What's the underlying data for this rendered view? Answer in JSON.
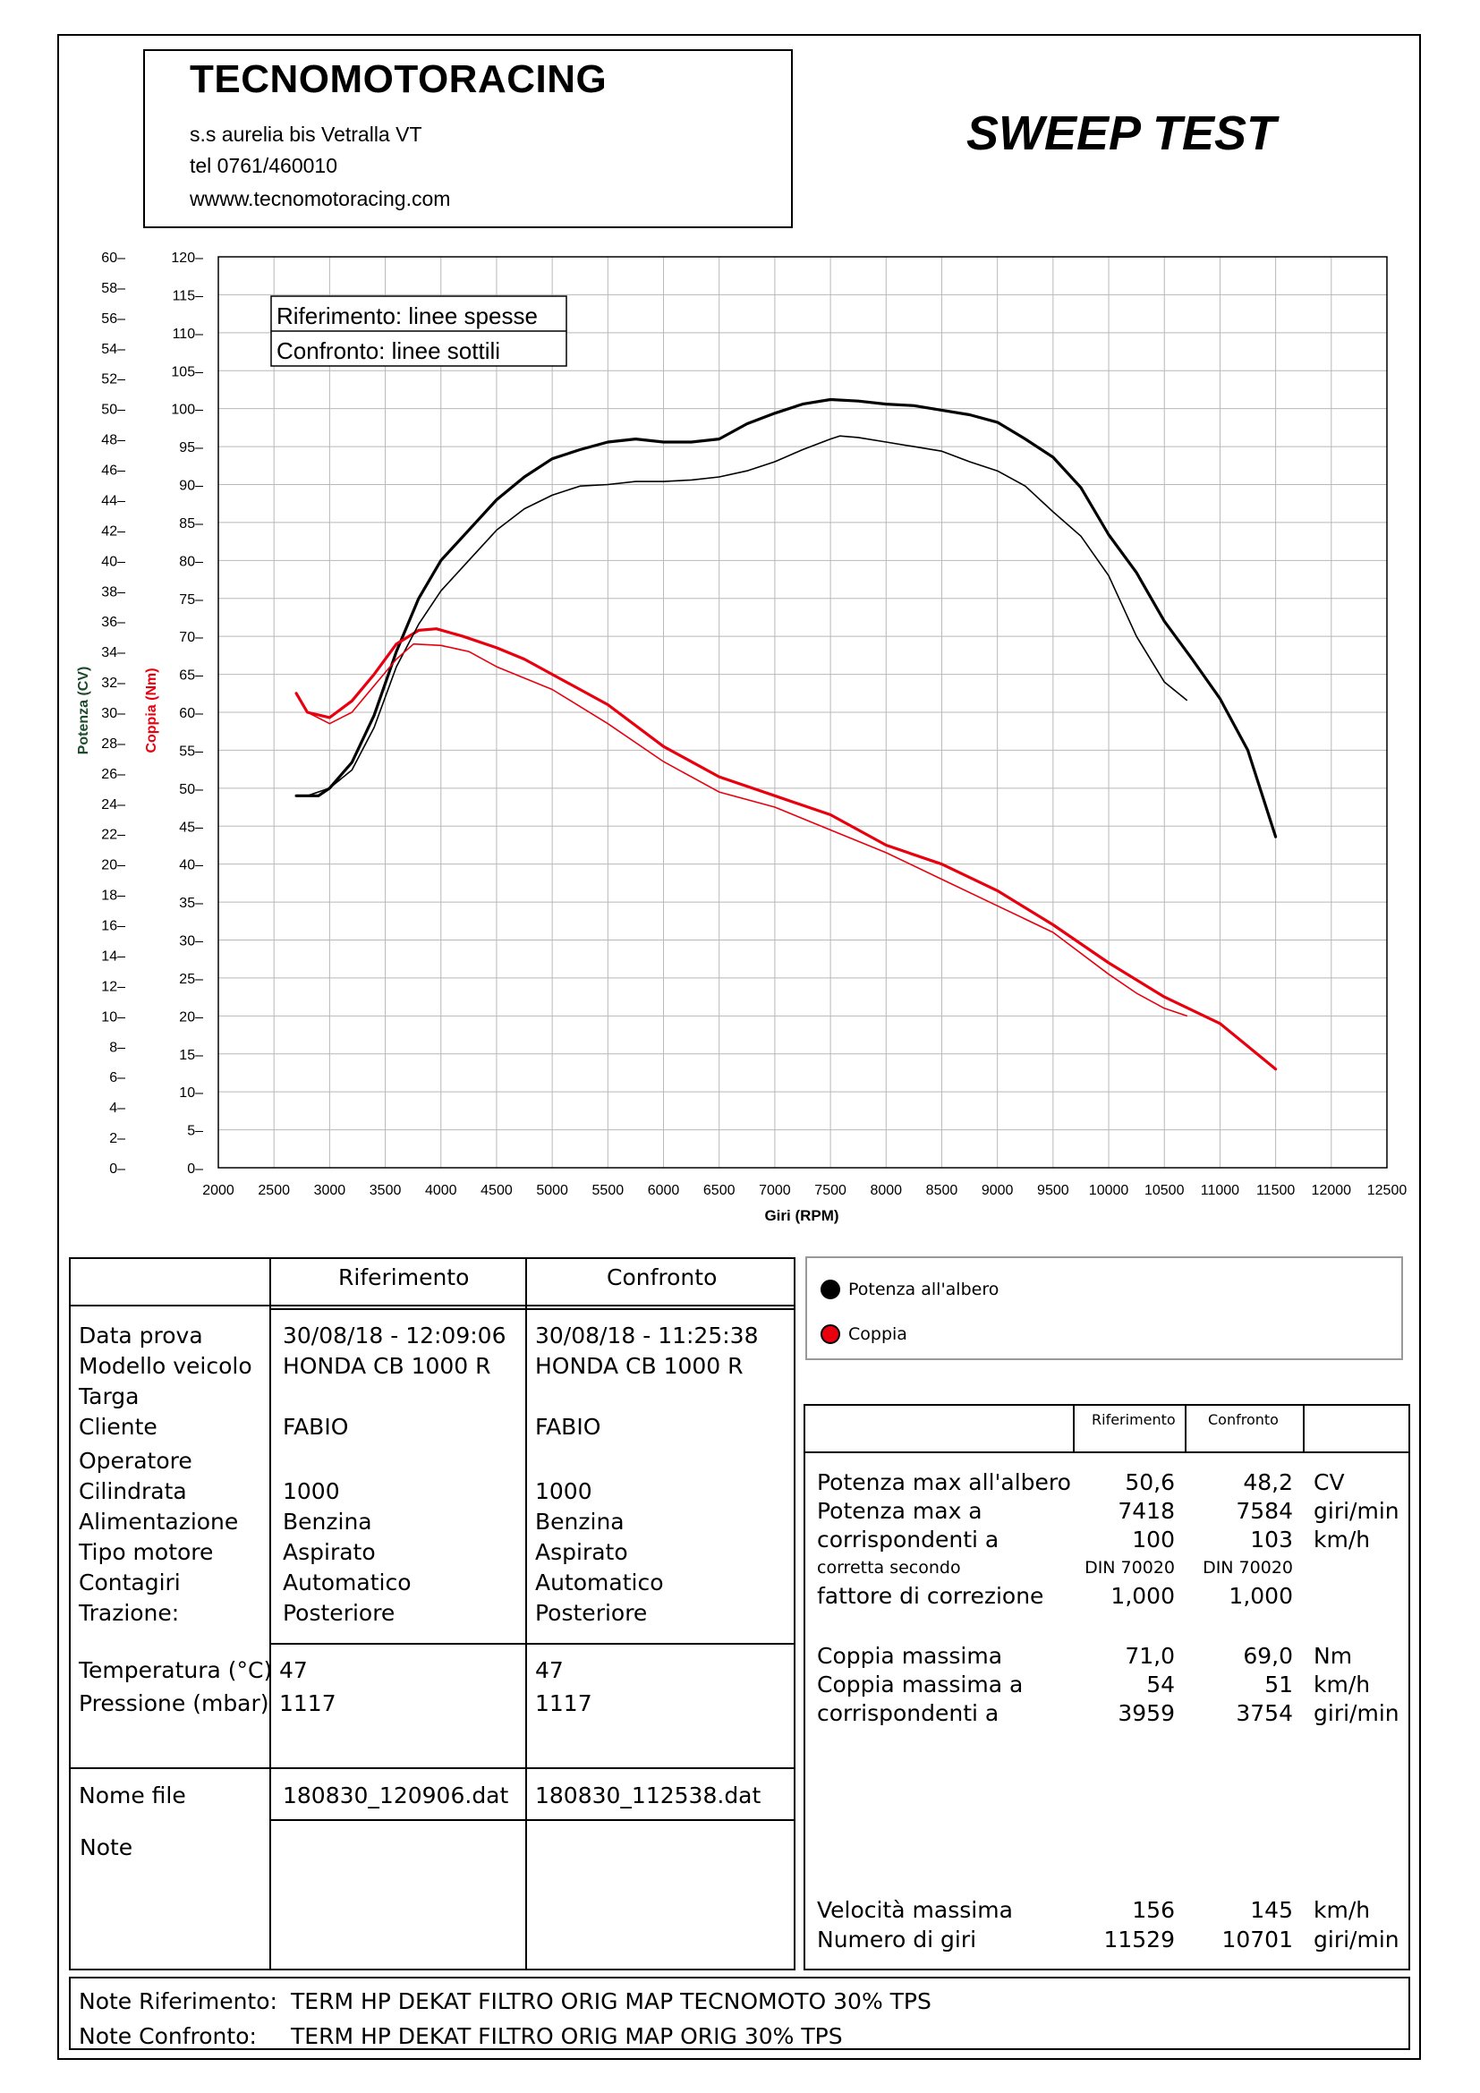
{
  "header": {
    "company": "TECNOMOTORACING",
    "address": "s.s aurelia bis  Vetralla  VT",
    "phone": "tel 0761/460010",
    "website": "wwww.tecnomotoracing.com",
    "test_title": "SWEEP TEST"
  },
  "chart_note": {
    "reference": "Riferimento: linee spesse",
    "comparison": "Confronto: linee sottili"
  },
  "chart_data": {
    "type": "line",
    "xlabel": "Giri (RPM)",
    "ylabel_left_outer": "Potenza (CV)",
    "ylabel_left_inner": "Coppia (Nm)",
    "xlim": [
      2000,
      12500
    ],
    "x_ticks": [
      "2000",
      "2500",
      "3000",
      "3500",
      "4000",
      "4500",
      "5000",
      "5500",
      "6000",
      "6500",
      "7000",
      "7500",
      "8000",
      "8500",
      "9000",
      "9500",
      "10000",
      "10500",
      "11000",
      "11500",
      "12000",
      "12500"
    ],
    "ylim_power": [
      0,
      60
    ],
    "power_ticks": [
      "0",
      "2",
      "4",
      "6",
      "8",
      "10",
      "12",
      "14",
      "16",
      "18",
      "20",
      "22",
      "24",
      "26",
      "28",
      "30",
      "32",
      "34",
      "36",
      "38",
      "40",
      "42",
      "44",
      "46",
      "48",
      "50",
      "52",
      "54",
      "56",
      "58",
      "60"
    ],
    "ylim_torque": [
      0,
      120
    ],
    "torque_ticks": [
      "0",
      "5",
      "10",
      "15",
      "20",
      "25",
      "30",
      "35",
      "40",
      "45",
      "50",
      "55",
      "60",
      "65",
      "70",
      "75",
      "80",
      "85",
      "90",
      "95",
      "100",
      "105",
      "110",
      "115",
      "120"
    ],
    "grid": true,
    "colors": {
      "power": "#000000",
      "torque": "#e8000f"
    },
    "series": [
      {
        "name": "Potenza all'albero",
        "role": "reference",
        "axis": "power",
        "color": "#000000",
        "x": [
          2700,
          2900,
          3000,
          3200,
          3400,
          3600,
          3800,
          4000,
          4250,
          4500,
          4750,
          5000,
          5250,
          5500,
          5750,
          6000,
          6250,
          6500,
          6750,
          7000,
          7250,
          7500,
          7750,
          8000,
          8250,
          8500,
          8750,
          9000,
          9250,
          9500,
          9750,
          10000,
          10250,
          10500,
          10750,
          11000,
          11250,
          11500
        ],
        "y": [
          24.5,
          24.5,
          25.0,
          26.7,
          29.8,
          34.0,
          37.5,
          40.0,
          42.0,
          44.0,
          45.5,
          46.7,
          47.3,
          47.8,
          48.0,
          47.8,
          47.8,
          48.0,
          49.0,
          49.7,
          50.3,
          50.6,
          50.5,
          50.3,
          50.2,
          49.9,
          49.6,
          49.1,
          48.0,
          46.8,
          44.8,
          41.7,
          39.2,
          36.0,
          33.5,
          30.9,
          27.5,
          21.8
        ]
      },
      {
        "name": "Coppia",
        "role": "reference",
        "axis": "torque",
        "color": "#e8000f",
        "x": [
          2700,
          2800,
          3000,
          3200,
          3400,
          3600,
          3800,
          3959,
          4200,
          4500,
          4750,
          5000,
          5500,
          6000,
          6500,
          7000,
          7500,
          8000,
          8500,
          9000,
          9500,
          10000,
          10500,
          11000,
          11500
        ],
        "y": [
          62.5,
          60.0,
          59.3,
          61.5,
          65.0,
          69.0,
          70.8,
          71.0,
          70.0,
          68.5,
          67.0,
          65.0,
          61.0,
          55.5,
          51.5,
          49.0,
          46.5,
          42.5,
          40.0,
          36.5,
          32.0,
          27.0,
          22.5,
          19.0,
          13.0
        ]
      },
      {
        "name": "Potenza all'albero",
        "role": "comparison",
        "axis": "power",
        "color": "#000000",
        "x": [
          2800,
          3000,
          3200,
          3400,
          3600,
          3800,
          4000,
          4250,
          4500,
          4750,
          5000,
          5250,
          5500,
          5750,
          6000,
          6250,
          6500,
          6750,
          7000,
          7250,
          7500,
          7584,
          7750,
          8000,
          8250,
          8500,
          8750,
          9000,
          9250,
          9500,
          9750,
          10000,
          10250,
          10500,
          10701
        ],
        "y": [
          24.5,
          25.0,
          26.2,
          29.0,
          33.0,
          35.8,
          38.0,
          40.0,
          42.0,
          43.4,
          44.3,
          44.9,
          45.0,
          45.2,
          45.2,
          45.3,
          45.5,
          45.9,
          46.5,
          47.3,
          48.0,
          48.2,
          48.1,
          47.8,
          47.5,
          47.2,
          46.5,
          45.9,
          44.9,
          43.2,
          41.6,
          39.0,
          35.0,
          32.0,
          30.8
        ]
      },
      {
        "name": "Coppia",
        "role": "comparison",
        "axis": "torque",
        "color": "#e8000f",
        "x": [
          2800,
          3000,
          3200,
          3400,
          3600,
          3754,
          4000,
          4250,
          4500,
          5000,
          5500,
          6000,
          6500,
          7000,
          7500,
          8000,
          8500,
          9000,
          9500,
          10000,
          10250,
          10500,
          10701
        ],
        "y": [
          60.0,
          58.5,
          60.0,
          63.5,
          67.0,
          69.0,
          68.8,
          68.0,
          66.0,
          63.0,
          58.5,
          53.5,
          49.5,
          47.5,
          44.5,
          41.5,
          38.0,
          34.5,
          31.0,
          25.5,
          23.0,
          21.0,
          20.0
        ]
      }
    ]
  },
  "legend": {
    "items": [
      {
        "label": "Potenza all'albero",
        "color": "#000000"
      },
      {
        "label": "Coppia",
        "color": "#e8000f"
      }
    ]
  },
  "info_table": {
    "col_ref": "Riferimento",
    "col_cmp": "Confronto",
    "labels": [
      "Data prova",
      "Modello veicolo",
      "Targa",
      "Cliente",
      "Operatore",
      "Cilindrata",
      "Alimentazione",
      "Tipo motore",
      "Contagiri",
      "Trazione:"
    ],
    "ref": [
      "30/08/18 - 12:09:06",
      "HONDA CB 1000 R",
      "",
      "FABIO",
      "",
      "1000",
      "Benzina",
      "Aspirato",
      "Automatico",
      "Posteriore"
    ],
    "cmp": [
      "30/08/18 - 11:25:38",
      "HONDA CB 1000 R",
      "",
      "FABIO",
      "",
      "1000",
      "Benzina",
      "Aspirato",
      "Automatico",
      "Posteriore"
    ],
    "env_labels": [
      "Temperatura (°C)",
      "Pressione (mbar)"
    ],
    "env_ref": [
      "47",
      "1117"
    ],
    "env_cmp": [
      "47",
      "1117"
    ],
    "file_label": "Nome file",
    "file_ref": "180830_120906.dat",
    "file_cmp": "180830_112538.dat",
    "note_label": "Note"
  },
  "results_table": {
    "col_ref": "Riferimento",
    "col_cmp": "Confronto",
    "rows": [
      {
        "label": "Potenza max all'albero",
        "ref": "50,6",
        "cmp": "48,2",
        "unit": "CV"
      },
      {
        "label": "Potenza max a",
        "ref": "7418",
        "cmp": "7584",
        "unit": "giri/min"
      },
      {
        "label": "corrispondenti a",
        "ref": "100",
        "cmp": "103",
        "unit": "km/h"
      },
      {
        "label": "corretta secondo",
        "ref": "DIN 70020",
        "cmp": "DIN 70020",
        "unit": ""
      },
      {
        "label": "fattore di correzione",
        "ref": "1,000",
        "cmp": "1,000",
        "unit": ""
      },
      {
        "label": "Coppia massima",
        "ref": "71,0",
        "cmp": "69,0",
        "unit": "Nm"
      },
      {
        "label": "Coppia massima a",
        "ref": "54",
        "cmp": "51",
        "unit": "km/h"
      },
      {
        "label": "corrispondenti a",
        "ref": "3959",
        "cmp": "3754",
        "unit": "giri/min"
      },
      {
        "label": "Velocità massima",
        "ref": "156",
        "cmp": "145",
        "unit": "km/h"
      },
      {
        "label": "Numero di giri",
        "ref": "11529",
        "cmp": "10701",
        "unit": "giri/min"
      }
    ]
  },
  "notes": {
    "ref_label": "Note Riferimento:",
    "ref_text": "TERM HP DEKAT  FILTRO ORIG MAP TECNOMOTO 30% TPS",
    "cmp_label": "Note Confronto:",
    "cmp_text": "TERM HP DEKAT  FILTRO ORIG MAP ORIG 30% TPS"
  }
}
